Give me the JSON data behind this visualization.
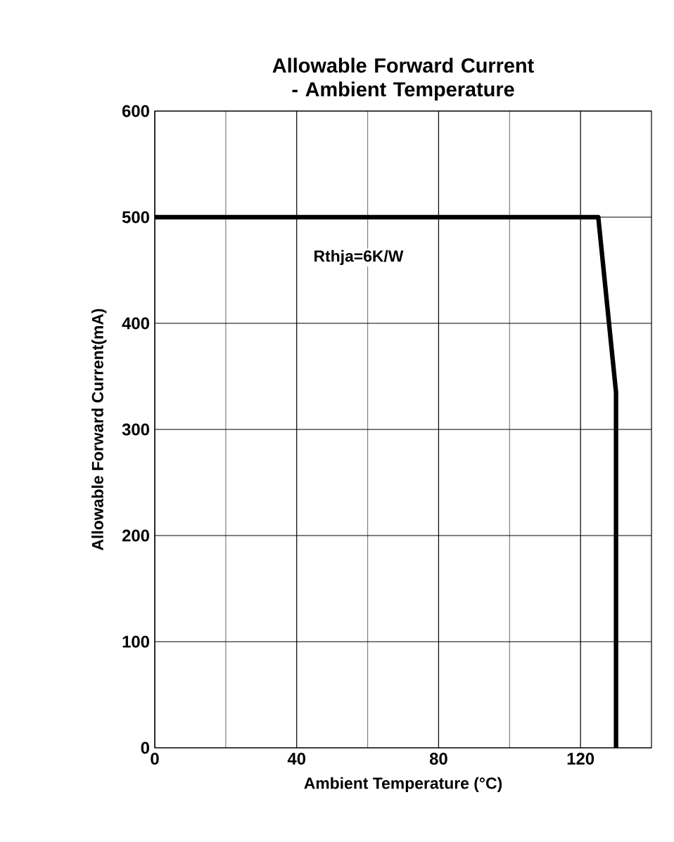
{
  "chart_data": {
    "type": "line",
    "title": "Allowable Forward Current - Ambient Temperature",
    "xlabel": "Ambient Temperature (°C)",
    "ylabel": "Allowable Forward Current(mA)",
    "x": [
      0,
      125,
      130,
      130
    ],
    "series": [
      {
        "color": "#000000",
        "values": [
          500,
          500,
          335,
          0
        ]
      }
    ],
    "xlim": [
      0,
      140
    ],
    "xticks": [
      0,
      40,
      80,
      120
    ],
    "ylim": [
      0,
      600
    ],
    "yticks": [
      0,
      100,
      200,
      300,
      400,
      500,
      600
    ],
    "grid": true,
    "marker": "none",
    "line_style": "solid",
    "annotations": [
      "Rthja=6K/W"
    ]
  }
}
